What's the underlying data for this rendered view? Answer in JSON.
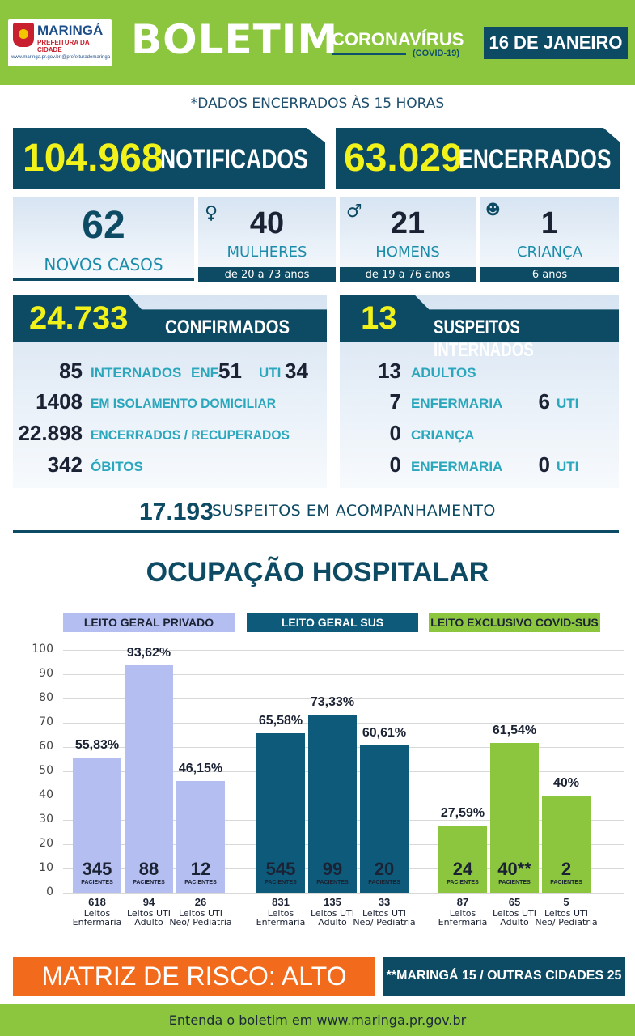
{
  "header": {
    "logo_name": "MARINGÁ",
    "logo_sub": "PREFEITURA DA CIDADE",
    "logo_links": "www.maringa.pr.gov.br  @prefeiturademaringa",
    "title": "BOLETIM",
    "corona": "CORONAVÍRUS",
    "covid": "(COVID-19)",
    "date": "16 DE JANEIRO"
  },
  "note": "*DADOS ENCERRADOS ÀS 15 HORAS",
  "totals": {
    "notified_value": "104.968",
    "notified_label": "NOTIFICADOS",
    "closed_value": "63.029",
    "closed_label": "ENCERRADOS"
  },
  "new_cases": {
    "value": "62",
    "label": "NOVOS CASOS",
    "women": {
      "value": "40",
      "label": "MULHERES",
      "range": "de 20 a 73 anos",
      "icon": "woman-icon"
    },
    "men": {
      "value": "21",
      "label": "HOMENS",
      "range": "de 19 a 76 anos",
      "icon": "man-icon"
    },
    "children": {
      "value": "1",
      "label": "CRIANÇA",
      "range": "6 anos",
      "icon": "baby-icon"
    }
  },
  "confirmed": {
    "value": "24.733",
    "label": "CONFIRMADOS",
    "rows": [
      {
        "num": "85",
        "label": "INTERNADOS",
        "enf_label": "ENF.",
        "enf": "51",
        "uti_label": "UTI",
        "uti": "34"
      },
      {
        "num": "1408",
        "label": "EM ISOLAMENTO DOMICILIAR"
      },
      {
        "num": "22.898",
        "label": "ENCERRADOS / RECUPERADOS"
      },
      {
        "num": "342",
        "label": "ÓBITOS"
      }
    ]
  },
  "suspects": {
    "value": "13",
    "label": "SUSPEITOS INTERNADOS",
    "rows": [
      {
        "num": "13",
        "label": "ADULTOS"
      },
      {
        "num": "7",
        "label": "ENFERMARIA",
        "uti": "6",
        "uti_label": "UTI"
      },
      {
        "num": "0",
        "label": "CRIANÇA"
      },
      {
        "num": "0",
        "label": "ENFERMARIA",
        "uti": "0",
        "uti_label": "UTI"
      }
    ]
  },
  "monitoring": {
    "value": "17.193",
    "label": "SUSPEITOS EM ACOMPANHAMENTO"
  },
  "hospital_title": "OCUPAÇÃO HOSPITALAR",
  "chart_data": {
    "type": "bar",
    "ylim": [
      0,
      100
    ],
    "yticks": [
      "100",
      "90",
      "80",
      "70",
      "60",
      "50",
      "40",
      "30",
      "20",
      "10",
      "0"
    ],
    "patients_label": "PACIENTES",
    "groups": [
      {
        "name": "LEITO GERAL PRIVADO",
        "color": "#b4bef0",
        "header_text_color": "#1b2233",
        "bars": [
          {
            "pct": 55.83,
            "pct_label": "55,83%",
            "patients": "345",
            "beds": "618",
            "bed_label": "Leitos Enfermaria"
          },
          {
            "pct": 93.62,
            "pct_label": "93,62%",
            "patients": "88",
            "beds": "94",
            "bed_label": "Leitos UTI Adulto"
          },
          {
            "pct": 46.15,
            "pct_label": "46,15%",
            "patients": "12",
            "beds": "26",
            "bed_label": "Leitos UTI Neo/ Pediatria"
          }
        ]
      },
      {
        "name": "LEITO GERAL SUS",
        "color": "#0d5a7a",
        "header_text_color": "#ffffff",
        "bars": [
          {
            "pct": 65.58,
            "pct_label": "65,58%",
            "patients": "545",
            "beds": "831",
            "bed_label": "Leitos Enfermaria"
          },
          {
            "pct": 73.33,
            "pct_label": "73,33%",
            "patients": "99",
            "beds": "135",
            "bed_label": "Leitos UTI Adulto"
          },
          {
            "pct": 60.61,
            "pct_label": "60,61%",
            "patients": "20",
            "beds": "33",
            "bed_label": "Leitos UTI Neo/ Pediatria"
          }
        ]
      },
      {
        "name": "LEITO EXCLUSIVO COVID-SUS",
        "color": "#8cc63f",
        "header_text_color": "#1b2233",
        "bars": [
          {
            "pct": 27.59,
            "pct_label": "27,59%",
            "patients": "24",
            "beds": "87",
            "bed_label": "Leitos Enfermaria"
          },
          {
            "pct": 61.54,
            "pct_label": "61,54%",
            "patients": "40**",
            "beds": "65",
            "bed_label": "Leitos UTI Adulto"
          },
          {
            "pct": 40,
            "pct_label": "40%",
            "patients": "2",
            "beds": "5",
            "bed_label": "Leitos UTI Neo/ Pediatria"
          }
        ]
      }
    ]
  },
  "risk": "MATRIZ DE RISCO: ALTO",
  "cities": "**MARINGÁ 15 / OUTRAS CIDADES 25",
  "footer": "Entenda o boletim em www.maringa.pr.gov.br"
}
